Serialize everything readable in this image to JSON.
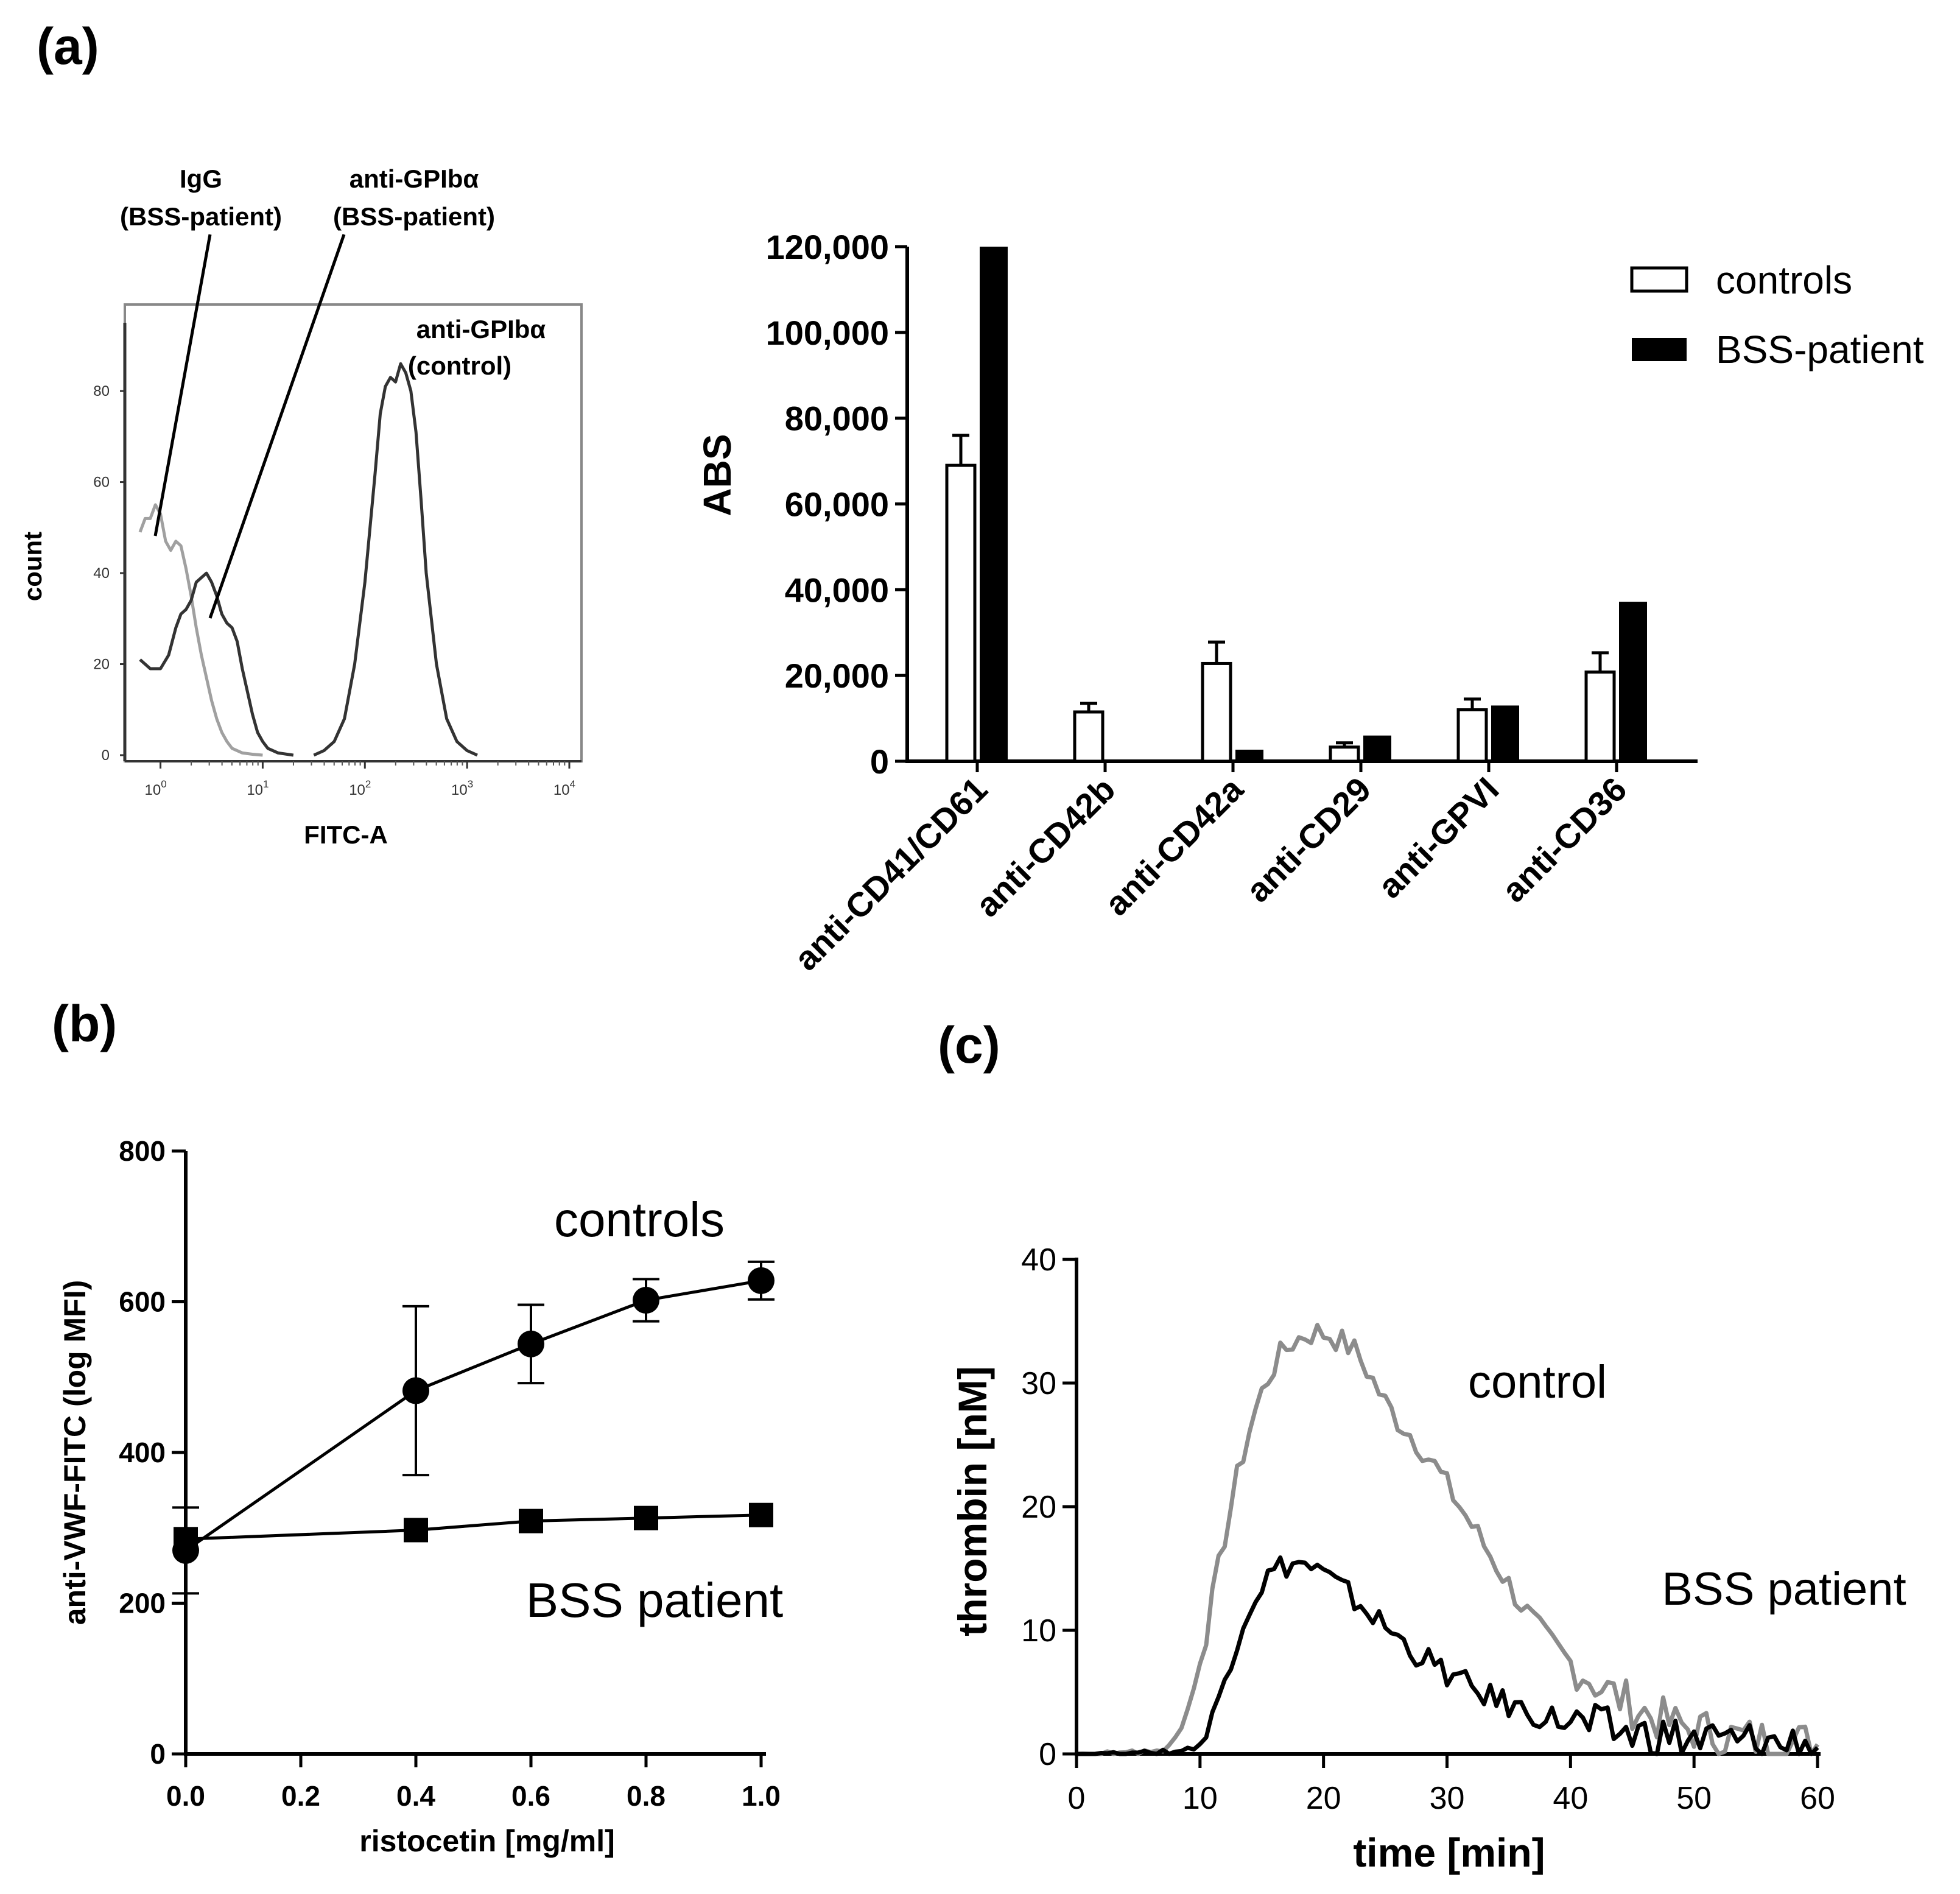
{
  "panels": {
    "a": "(a)",
    "b": "(b)",
    "c": "(c)"
  },
  "colors": {
    "black": "#000000",
    "gray": "#8c8c8c",
    "light_gray": "#a0a0a0",
    "white": "#ffffff",
    "frame_gray": "#888888"
  },
  "chart_data": [
    {
      "id": "a_flow",
      "type": "line",
      "title": "",
      "xlabel": "FITC-A",
      "ylabel": "count",
      "xscale": "log",
      "xlim_log10": [
        -0.2,
        4.0
      ],
      "ylim": [
        0,
        95
      ],
      "x_ticks": [
        {
          "label": "10",
          "exp": "0",
          "log10": 0
        },
        {
          "label": "10",
          "exp": "1",
          "log10": 1
        },
        {
          "label": "10",
          "exp": "2",
          "log10": 2
        },
        {
          "label": "10",
          "exp": "3",
          "log10": 3
        },
        {
          "label": "10",
          "exp": "4",
          "log10": 4
        }
      ],
      "y_ticks": [
        0,
        20,
        40,
        60,
        80
      ],
      "annotations": [
        {
          "id": "igg",
          "lines": [
            "IgG",
            "(BSS-patient)"
          ]
        },
        {
          "id": "anti_bss",
          "lines": [
            "anti-GPIbα",
            "(BSS-patient)"
          ]
        },
        {
          "id": "anti_ctrl",
          "lines": [
            "anti-GPIbα",
            "(control)"
          ]
        }
      ],
      "series": [
        {
          "name": "IgG (BSS-patient)",
          "color": "#a0a0a0",
          "points": [
            [
              -0.2,
              49
            ],
            [
              -0.15,
              52
            ],
            [
              -0.1,
              52
            ],
            [
              -0.05,
              55
            ],
            [
              0.0,
              53
            ],
            [
              0.05,
              47
            ],
            [
              0.1,
              45
            ],
            [
              0.15,
              47
            ],
            [
              0.2,
              46
            ],
            [
              0.25,
              41
            ],
            [
              0.3,
              35
            ],
            [
              0.35,
              28
            ],
            [
              0.4,
              22
            ],
            [
              0.45,
              17
            ],
            [
              0.5,
              12
            ],
            [
              0.55,
              8
            ],
            [
              0.6,
              5
            ],
            [
              0.65,
              3
            ],
            [
              0.7,
              1.5
            ],
            [
              0.8,
              0.5
            ],
            [
              0.9,
              0.2
            ],
            [
              1.0,
              0
            ]
          ]
        },
        {
          "name": "anti-GPIbα (BSS-patient)",
          "color": "#333333",
          "points": [
            [
              -0.2,
              21
            ],
            [
              -0.1,
              19
            ],
            [
              0.0,
              19
            ],
            [
              0.08,
              22
            ],
            [
              0.15,
              28
            ],
            [
              0.2,
              31
            ],
            [
              0.25,
              32
            ],
            [
              0.3,
              34
            ],
            [
              0.35,
              38
            ],
            [
              0.4,
              39
            ],
            [
              0.45,
              40
            ],
            [
              0.5,
              38
            ],
            [
              0.55,
              35
            ],
            [
              0.6,
              31
            ],
            [
              0.65,
              29
            ],
            [
              0.7,
              28
            ],
            [
              0.75,
              25
            ],
            [
              0.8,
              19
            ],
            [
              0.85,
              14
            ],
            [
              0.9,
              9
            ],
            [
              0.95,
              5
            ],
            [
              1.0,
              3
            ],
            [
              1.05,
              1.5
            ],
            [
              1.15,
              0.5
            ],
            [
              1.3,
              0
            ]
          ]
        },
        {
          "name": "anti-GPIbα (control)",
          "color": "#333333",
          "points": [
            [
              1.5,
              0
            ],
            [
              1.6,
              1
            ],
            [
              1.7,
              3
            ],
            [
              1.8,
              8
            ],
            [
              1.9,
              20
            ],
            [
              2.0,
              38
            ],
            [
              2.1,
              62
            ],
            [
              2.15,
              75
            ],
            [
              2.2,
              81
            ],
            [
              2.25,
              83
            ],
            [
              2.3,
              82
            ],
            [
              2.35,
              86
            ],
            [
              2.4,
              84
            ],
            [
              2.45,
              80
            ],
            [
              2.5,
              71
            ],
            [
              2.55,
              56
            ],
            [
              2.6,
              40
            ],
            [
              2.7,
              20
            ],
            [
              2.8,
              8
            ],
            [
              2.9,
              3
            ],
            [
              3.0,
              1
            ],
            [
              3.1,
              0
            ]
          ]
        }
      ]
    },
    {
      "id": "a_bar",
      "type": "bar",
      "title": "",
      "xlabel": "",
      "ylabel": "ABS",
      "ylim": [
        0,
        120000
      ],
      "y_ticks": [
        0,
        20000,
        40000,
        60000,
        80000,
        100000,
        120000
      ],
      "y_tick_labels": [
        "0",
        "20,000",
        "40,000",
        "60,000",
        "80,000",
        "100,000",
        "120,000"
      ],
      "categories": [
        "anti-CD41/CD61",
        "anti-CD42b",
        "anti-CD42a",
        "anti-CD29",
        "anti-GPVI",
        "anti-CD36"
      ],
      "legend": {
        "position": "top-right",
        "entries": [
          "controls",
          "BSS-patient"
        ]
      },
      "series": [
        {
          "name": "controls",
          "fill": "#ffffff",
          "values": [
            69000,
            11500,
            22800,
            3300,
            12000,
            20800
          ],
          "errors": [
            7000,
            2000,
            5000,
            1000,
            2500,
            4500
          ]
        },
        {
          "name": "BSS-patient",
          "fill": "#000000",
          "values": [
            120000,
            0,
            2700,
            6000,
            13000,
            37200
          ]
        }
      ]
    },
    {
      "id": "b",
      "type": "line",
      "title": "",
      "xlabel": "ristocetin [mg/ml]",
      "ylabel": "anti-VWF-FITC (log MFI)",
      "xlim": [
        0,
        1.0
      ],
      "ylim": [
        0,
        800
      ],
      "x_ticks": [
        0.0,
        0.2,
        0.4,
        0.6,
        0.8,
        1.0
      ],
      "x_tick_labels": [
        "0.0",
        "0.2",
        "0.4",
        "0.6",
        "0.8",
        "1.0"
      ],
      "y_ticks": [
        0,
        200,
        400,
        600,
        800
      ],
      "y_tick_labels": [
        "0",
        "200",
        "400",
        "600",
        "800"
      ],
      "labels": {
        "controls": "controls",
        "bss": "BSS patient"
      },
      "series": [
        {
          "name": "controls",
          "marker": "circle",
          "x": [
            0.0,
            0.4,
            0.6,
            0.8,
            1.0
          ],
          "values": [
            270,
            482,
            544,
            602,
            628
          ],
          "errors": [
            57,
            112,
            52,
            28,
            25
          ]
        },
        {
          "name": "BSS patient",
          "marker": "square",
          "x": [
            0.0,
            0.4,
            0.6,
            0.8,
            1.0
          ],
          "values": [
            285,
            297,
            309,
            313,
            317
          ],
          "errors": [
            0,
            0,
            0,
            0,
            0
          ]
        }
      ]
    },
    {
      "id": "c",
      "type": "line",
      "title": "",
      "xlabel": "time [min]",
      "ylabel": "thrombin [nM]",
      "xlim": [
        0,
        60
      ],
      "ylim": [
        0,
        40
      ],
      "x_ticks": [
        0,
        10,
        20,
        30,
        40,
        50,
        60
      ],
      "x_tick_labels": [
        "0",
        "10",
        "20",
        "30",
        "40",
        "50",
        "60"
      ],
      "y_ticks": [
        0,
        10,
        20,
        30,
        40
      ],
      "y_tick_labels": [
        "0",
        "10",
        "20",
        "30",
        "40"
      ],
      "labels": {
        "control": "control",
        "bss": "BSS patient"
      },
      "series": [
        {
          "name": "control",
          "color": "#8c8c8c",
          "x_start": 0,
          "x_step": 0.5,
          "values": [
            0,
            0,
            0,
            0,
            0,
            0.2,
            0,
            0,
            0.1,
            0.3,
            0,
            0.2,
            0.1,
            0.4,
            0.2,
            0.8,
            1.3,
            2.2,
            3.6,
            5.3,
            7.4,
            9.8,
            12.4,
            15,
            17.6,
            20,
            22.3,
            24.3,
            26.2,
            27.8,
            29.2,
            30.4,
            31.4,
            32.2,
            32.8,
            33.3,
            33.6,
            33.9,
            34,
            34.1,
            34,
            33.9,
            33.6,
            33.3,
            33,
            32.6,
            31.9,
            31.1,
            30.2,
            29.3,
            28.4,
            27.7,
            27,
            26.5,
            25.9,
            25.3,
            24.7,
            24,
            23.3,
            22.5,
            21.7,
            20.9,
            20.1,
            19.3,
            18.5,
            17.7,
            16.9,
            16.1,
            15.3,
            14.5,
            13.7,
            12.9,
            12.1,
            11.4,
            10.7,
            10,
            9.4,
            8.9,
            8.4,
            7.9,
            7.4,
            7,
            6.6,
            6.2,
            5.8,
            5.4,
            5.1,
            4.8,
            4.5,
            4.2,
            3.9,
            3.6,
            3.4,
            3.1,
            2.9,
            2.7,
            2.5,
            2.3,
            2.2,
            2.1,
            2,
            1.9,
            1.8,
            1.7,
            1.6,
            1.5,
            1.4,
            1.3,
            1.3,
            1.2,
            1.2,
            1.1,
            1.1,
            1,
            1,
            1,
            0.9,
            0.9,
            0.9,
            0.9,
            0.8
          ]
        },
        {
          "name": "BSS patient",
          "color": "#000000",
          "x_start": 0,
          "x_step": 0.5,
          "values": [
            0,
            0,
            0,
            0,
            0,
            0.1,
            0,
            0.1,
            0,
            0.2,
            0,
            0.1,
            0.2,
            0,
            0.3,
            0.1,
            0.2,
            0.3,
            0.4,
            0.5,
            0.8,
            1.5,
            2.8,
            4.4,
            6.2,
            7.9,
            9.4,
            10.8,
            11.9,
            12.9,
            13.7,
            14.3,
            14.8,
            15.1,
            15.3,
            15.4,
            15.4,
            15.3,
            15.1,
            14.8,
            14.5,
            14.1,
            13.7,
            13.3,
            12.9,
            12.5,
            12.1,
            11.6,
            11.2,
            10.7,
            10.3,
            9.9,
            9.4,
            9,
            8.6,
            8.2,
            7.8,
            7.5,
            7.1,
            6.8,
            6.5,
            6.2,
            5.9,
            5.6,
            5.3,
            5,
            4.8,
            4.6,
            4.4,
            4.2,
            4,
            3.8,
            3.6,
            3.4,
            3.3,
            3.1,
            3,
            2.9,
            2.7,
            2.6,
            2.5,
            2.4,
            2.3,
            2.2,
            2.1,
            2,
            1.9,
            1.8,
            1.8,
            1.7,
            1.6,
            1.6,
            1.5,
            1.5,
            1.4,
            1.4,
            1.3,
            1.3,
            1.2,
            1.2,
            1.2,
            1.1,
            1.1,
            1.1,
            1,
            1,
            1,
            1,
            0.9,
            0.9,
            0.9,
            0.9,
            0.9,
            0.8,
            0.8,
            0.8,
            0.8,
            0.8,
            0.8,
            0.8,
            0.8
          ]
        }
      ]
    }
  ]
}
